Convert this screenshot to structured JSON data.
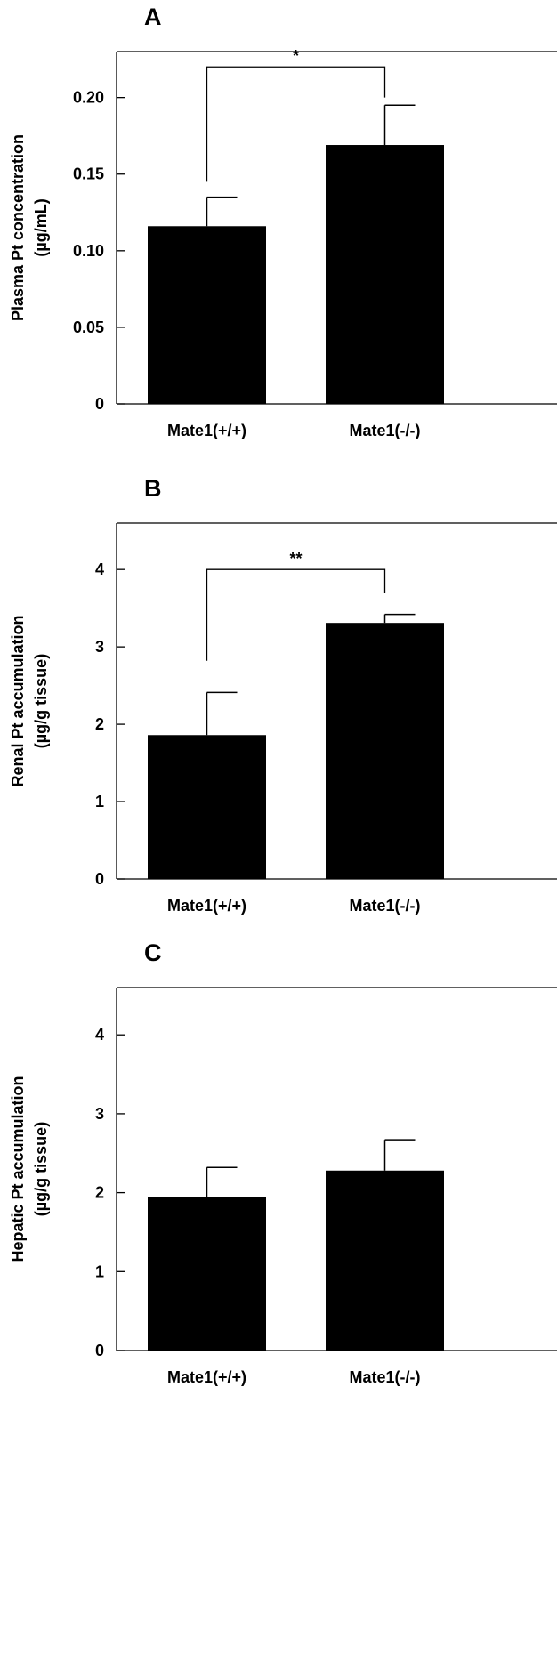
{
  "chart_data": [
    {
      "type": "bar",
      "panel_label": "A",
      "ylabel_lines": [
        "Plasma Pt concentration",
        "(µg/mL)"
      ],
      "categories": [
        "Mate1(+/+)",
        "Mate1(-/-)"
      ],
      "values": [
        0.116,
        0.169
      ],
      "errors": [
        0.019,
        0.026
      ],
      "ylim": [
        0,
        0.23
      ],
      "yticks": [
        0,
        0.05,
        0.1,
        0.15,
        0.2
      ],
      "ytick_labels": [
        "0",
        "0.05",
        "0.10",
        "0.15",
        "0.20"
      ],
      "significance": {
        "from": 0,
        "to": 1,
        "label": "*",
        "y": 0.22,
        "left_y": 0.145,
        "right_y": 0.2
      },
      "grid": false,
      "bar_color": "#000000"
    },
    {
      "type": "bar",
      "panel_label": "B",
      "ylabel_lines": [
        "Renal Pt accumulation",
        "(µg/g tissue)"
      ],
      "categories": [
        "Mate1(+/+)",
        "Mate1(-/-)"
      ],
      "values": [
        1.86,
        3.31
      ],
      "errors": [
        0.55,
        0.11
      ],
      "ylim": [
        0,
        4.6
      ],
      "yticks": [
        0,
        1,
        2,
        3,
        4
      ],
      "ytick_labels": [
        "0",
        "1",
        "2",
        "3",
        "4"
      ],
      "significance": {
        "from": 0,
        "to": 1,
        "label": "**",
        "y": 4.0,
        "left_y": 2.82,
        "right_y": 3.7
      },
      "grid": false,
      "bar_color": "#000000"
    },
    {
      "type": "bar",
      "panel_label": "C",
      "ylabel_lines": [
        "Hepatic Pt accumulation",
        "(µg/g tissue)"
      ],
      "categories": [
        "Mate1(+/+)",
        "Mate1(-/-)"
      ],
      "values": [
        1.95,
        2.28
      ],
      "errors": [
        0.37,
        0.39
      ],
      "ylim": [
        0,
        4.6
      ],
      "yticks": [
        0,
        1,
        2,
        3,
        4
      ],
      "ytick_labels": [
        "0",
        "1",
        "2",
        "3",
        "4"
      ],
      "grid": false,
      "bar_color": "#000000"
    }
  ]
}
